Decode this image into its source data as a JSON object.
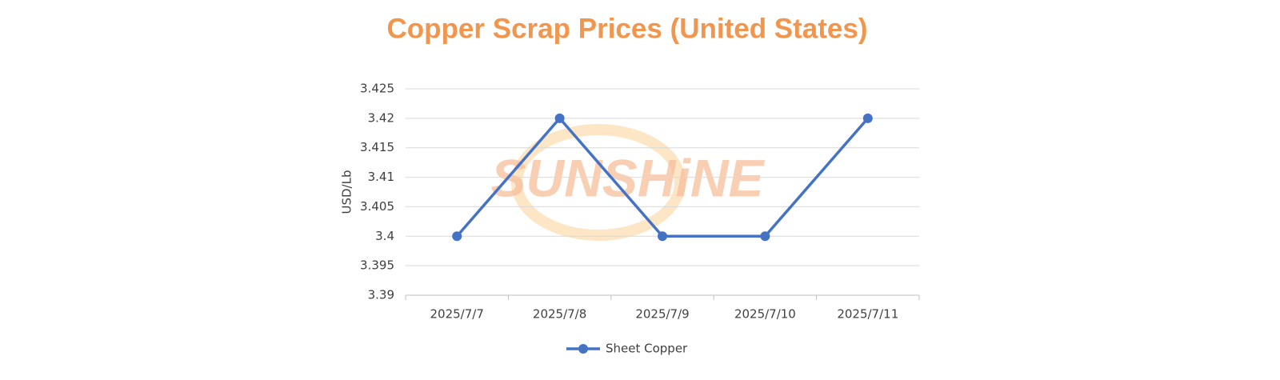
{
  "chart_data": {
    "type": "line",
    "title": "Copper Scrap Prices (United States)",
    "y_label": "USD/Lb",
    "watermark": "SUNSHiNE",
    "categories": [
      "2025/7/7",
      "2025/7/8",
      "2025/7/9",
      "2025/7/10",
      "2025/7/11"
    ],
    "series": [
      {
        "name": "Sheet Copper",
        "color": "#4472c4",
        "values": [
          3.4,
          3.42,
          3.4,
          3.4,
          3.42
        ]
      }
    ],
    "ylim": [
      3.39,
      3.425
    ],
    "yticks": [
      3.39,
      3.395,
      3.4,
      3.405,
      3.41,
      3.415,
      3.42,
      3.425
    ],
    "grid": true,
    "legend": "bottom"
  }
}
